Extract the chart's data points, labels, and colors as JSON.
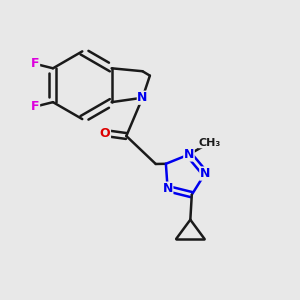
{
  "bg_color": "#e8e8e8",
  "bond_color": "#1a1a1a",
  "N_color": "#0000ee",
  "O_color": "#dd0000",
  "F_color": "#dd00dd",
  "bond_width": 1.8,
  "figsize": [
    3.0,
    3.0
  ],
  "dpi": 100,
  "xlim": [
    0.0,
    1.0
  ],
  "ylim": [
    0.0,
    1.0
  ]
}
